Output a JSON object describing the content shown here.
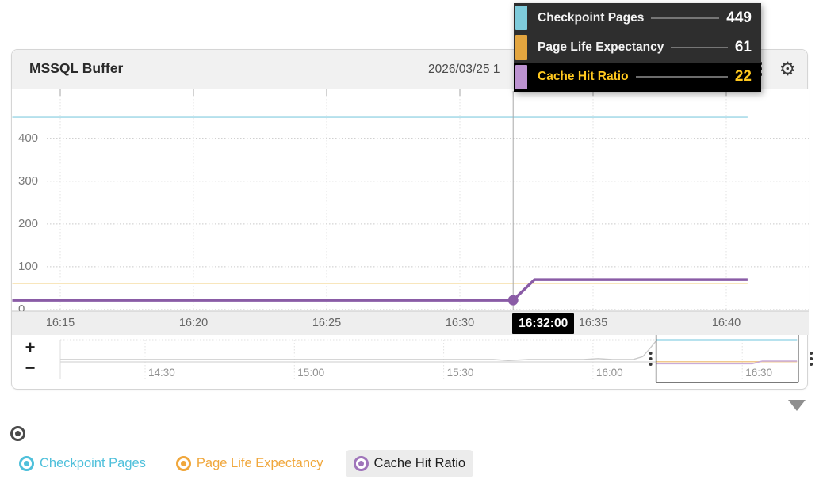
{
  "window": {
    "title": "MSSQL Buffer",
    "date_text": "2026/03/25 1"
  },
  "header_icons": {
    "gear_glyph": "⚙",
    "kebab": "vertical-dots"
  },
  "tooltip": {
    "time": "16:32:00",
    "bg_color": "#2e2e2e",
    "highlight_bg": "#000000",
    "highlight_text_color": "#ffc81e",
    "rows": [
      {
        "label": "Checkpoint Pages",
        "value": "449",
        "swatch_color": "#7ecbdb",
        "highlighted": false
      },
      {
        "label": "Page Life Expectancy",
        "value": "61",
        "swatch_color": "#e3a53f",
        "highlighted": false
      },
      {
        "label": "Cache Hit Ratio",
        "value": "22",
        "swatch_color": "#bc92d0",
        "highlighted": true
      }
    ]
  },
  "chart_data": {
    "type": "line",
    "title": "MSSQL Buffer",
    "y_ticks": [
      0,
      100,
      200,
      300,
      400
    ],
    "ylim": [
      0,
      517
    ],
    "x_ticks": [
      "16:15",
      "16:20",
      "16:25",
      "16:30",
      "16:35",
      "16:40"
    ],
    "x_minutes_base_hour": 16,
    "grid": true,
    "cursor_time": "16:32:00",
    "cursor_point": {
      "series": "Cache Hit Ratio",
      "minute": 32,
      "value": 22
    },
    "cursor_values": {
      "Checkpoint Pages": 449,
      "Page Life Expectancy": 61,
      "Cache Hit Ratio": 22
    },
    "series": [
      {
        "name": "Checkpoint Pages",
        "color": "#a9dce9",
        "width": 1.6,
        "points": [
          [
            13.2,
            449
          ],
          [
            40.8,
            449
          ]
        ]
      },
      {
        "name": "Page Life Expectancy",
        "color": "#f6dda6",
        "width": 1.6,
        "points": [
          [
            13.2,
            61
          ],
          [
            40.8,
            61
          ]
        ]
      },
      {
        "name": "Cache Hit Ratio",
        "color": "#8a5ca6",
        "width": 3.5,
        "points": [
          [
            13.2,
            22
          ],
          [
            32,
            22
          ],
          [
            32.8,
            70
          ],
          [
            40.8,
            70
          ]
        ]
      }
    ],
    "navigator": {
      "x_ticks": [
        "14:30",
        "15:00",
        "15:30",
        "16:00",
        "16:30"
      ],
      "x_minutes_base_hour": 14,
      "selection_start_minute": 132.7,
      "selection_end_minute": 161.3,
      "history_series": [
        {
          "name": "history-preview-upper",
          "color": "#c9c9c9",
          "width": 1.4,
          "points": [
            [
              13,
              98
            ],
            [
              100,
              98
            ],
            [
              103,
              80
            ],
            [
              107,
              98
            ],
            [
              118,
              98
            ],
            [
              121,
              115
            ],
            [
              124,
              98
            ],
            [
              128,
              98
            ],
            [
              130,
              150
            ],
            [
              131.5,
              300
            ],
            [
              132.7,
              430
            ]
          ]
        },
        {
          "name": "history-preview-lower",
          "color": "#d6d6d6",
          "width": 1.2,
          "points": [
            [
              13,
              56
            ],
            [
              132.7,
              56
            ]
          ]
        }
      ],
      "selected_series": [
        {
          "name": "Checkpoint Pages",
          "color": "#9fd9e8",
          "width": 1.5,
          "points": [
            [
              132.7,
              449
            ],
            [
              161,
              449
            ]
          ]
        },
        {
          "name": "Page Life Expectancy",
          "color": "#f0c98c",
          "width": 1.5,
          "points": [
            [
              132.7,
              61
            ],
            [
              161,
              61
            ]
          ]
        },
        {
          "name": "Cache Hit Ratio",
          "color": "#c9abd8",
          "width": 1.5,
          "points": [
            [
              132.7,
              22
            ],
            [
              152,
              22
            ],
            [
              154,
              70
            ],
            [
              161,
              70
            ]
          ]
        }
      ]
    }
  },
  "navigator_controls": {
    "zoom_in_label": "+",
    "zoom_out_label": "−"
  },
  "legend": {
    "toggle_radio_color": "#4a4a4a",
    "items": [
      {
        "label": "Checkpoint Pages",
        "color": "#4fc0db",
        "text_color": "#4fc0db",
        "selected": false
      },
      {
        "label": "Page Life Expectancy",
        "color": "#f0a73c",
        "text_color": "#f0a73c",
        "selected": false
      },
      {
        "label": "Cache Hit Ratio",
        "color": "#9f74ba",
        "text_color": "#1f1f1f",
        "selected": true
      }
    ]
  }
}
